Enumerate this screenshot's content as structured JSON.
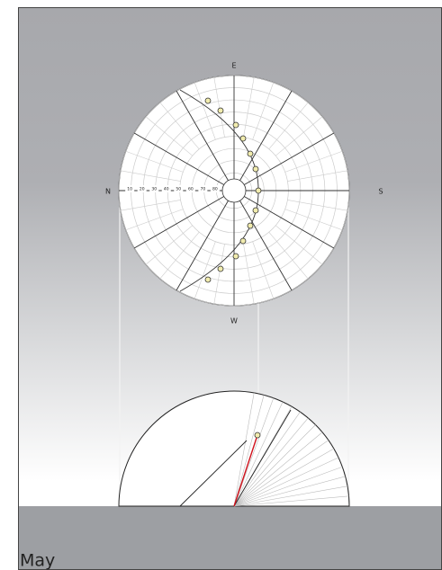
{
  "compass": {
    "north": "N",
    "east": "E",
    "south": "S",
    "west": "W"
  },
  "ring_labels": [
    "10",
    "20",
    "30",
    "40",
    "50",
    "60",
    "70",
    "80"
  ],
  "month": "May"
}
